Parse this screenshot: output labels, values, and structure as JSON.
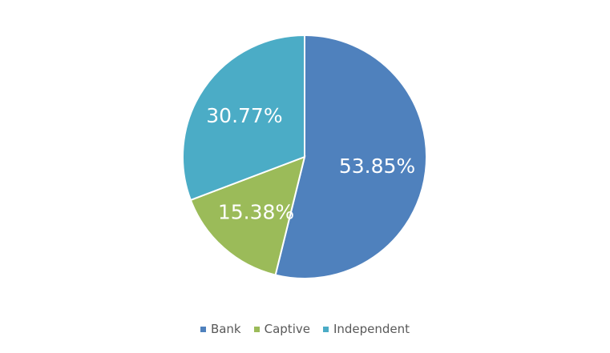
{
  "chart_data": {
    "type": "pie",
    "title": "",
    "start_angle": "top, clockwise",
    "legend_position": "bottom",
    "slices": [
      {
        "name": "Bank",
        "value": 53.85,
        "label": "53.85%",
        "color": "#4F81BD"
      },
      {
        "name": "Captive",
        "value": 15.38,
        "label": "15.38%",
        "color": "#9BBB59"
      },
      {
        "name": "Independent",
        "value": 30.77,
        "label": "30.77%",
        "color": "#4BACC6"
      }
    ]
  }
}
